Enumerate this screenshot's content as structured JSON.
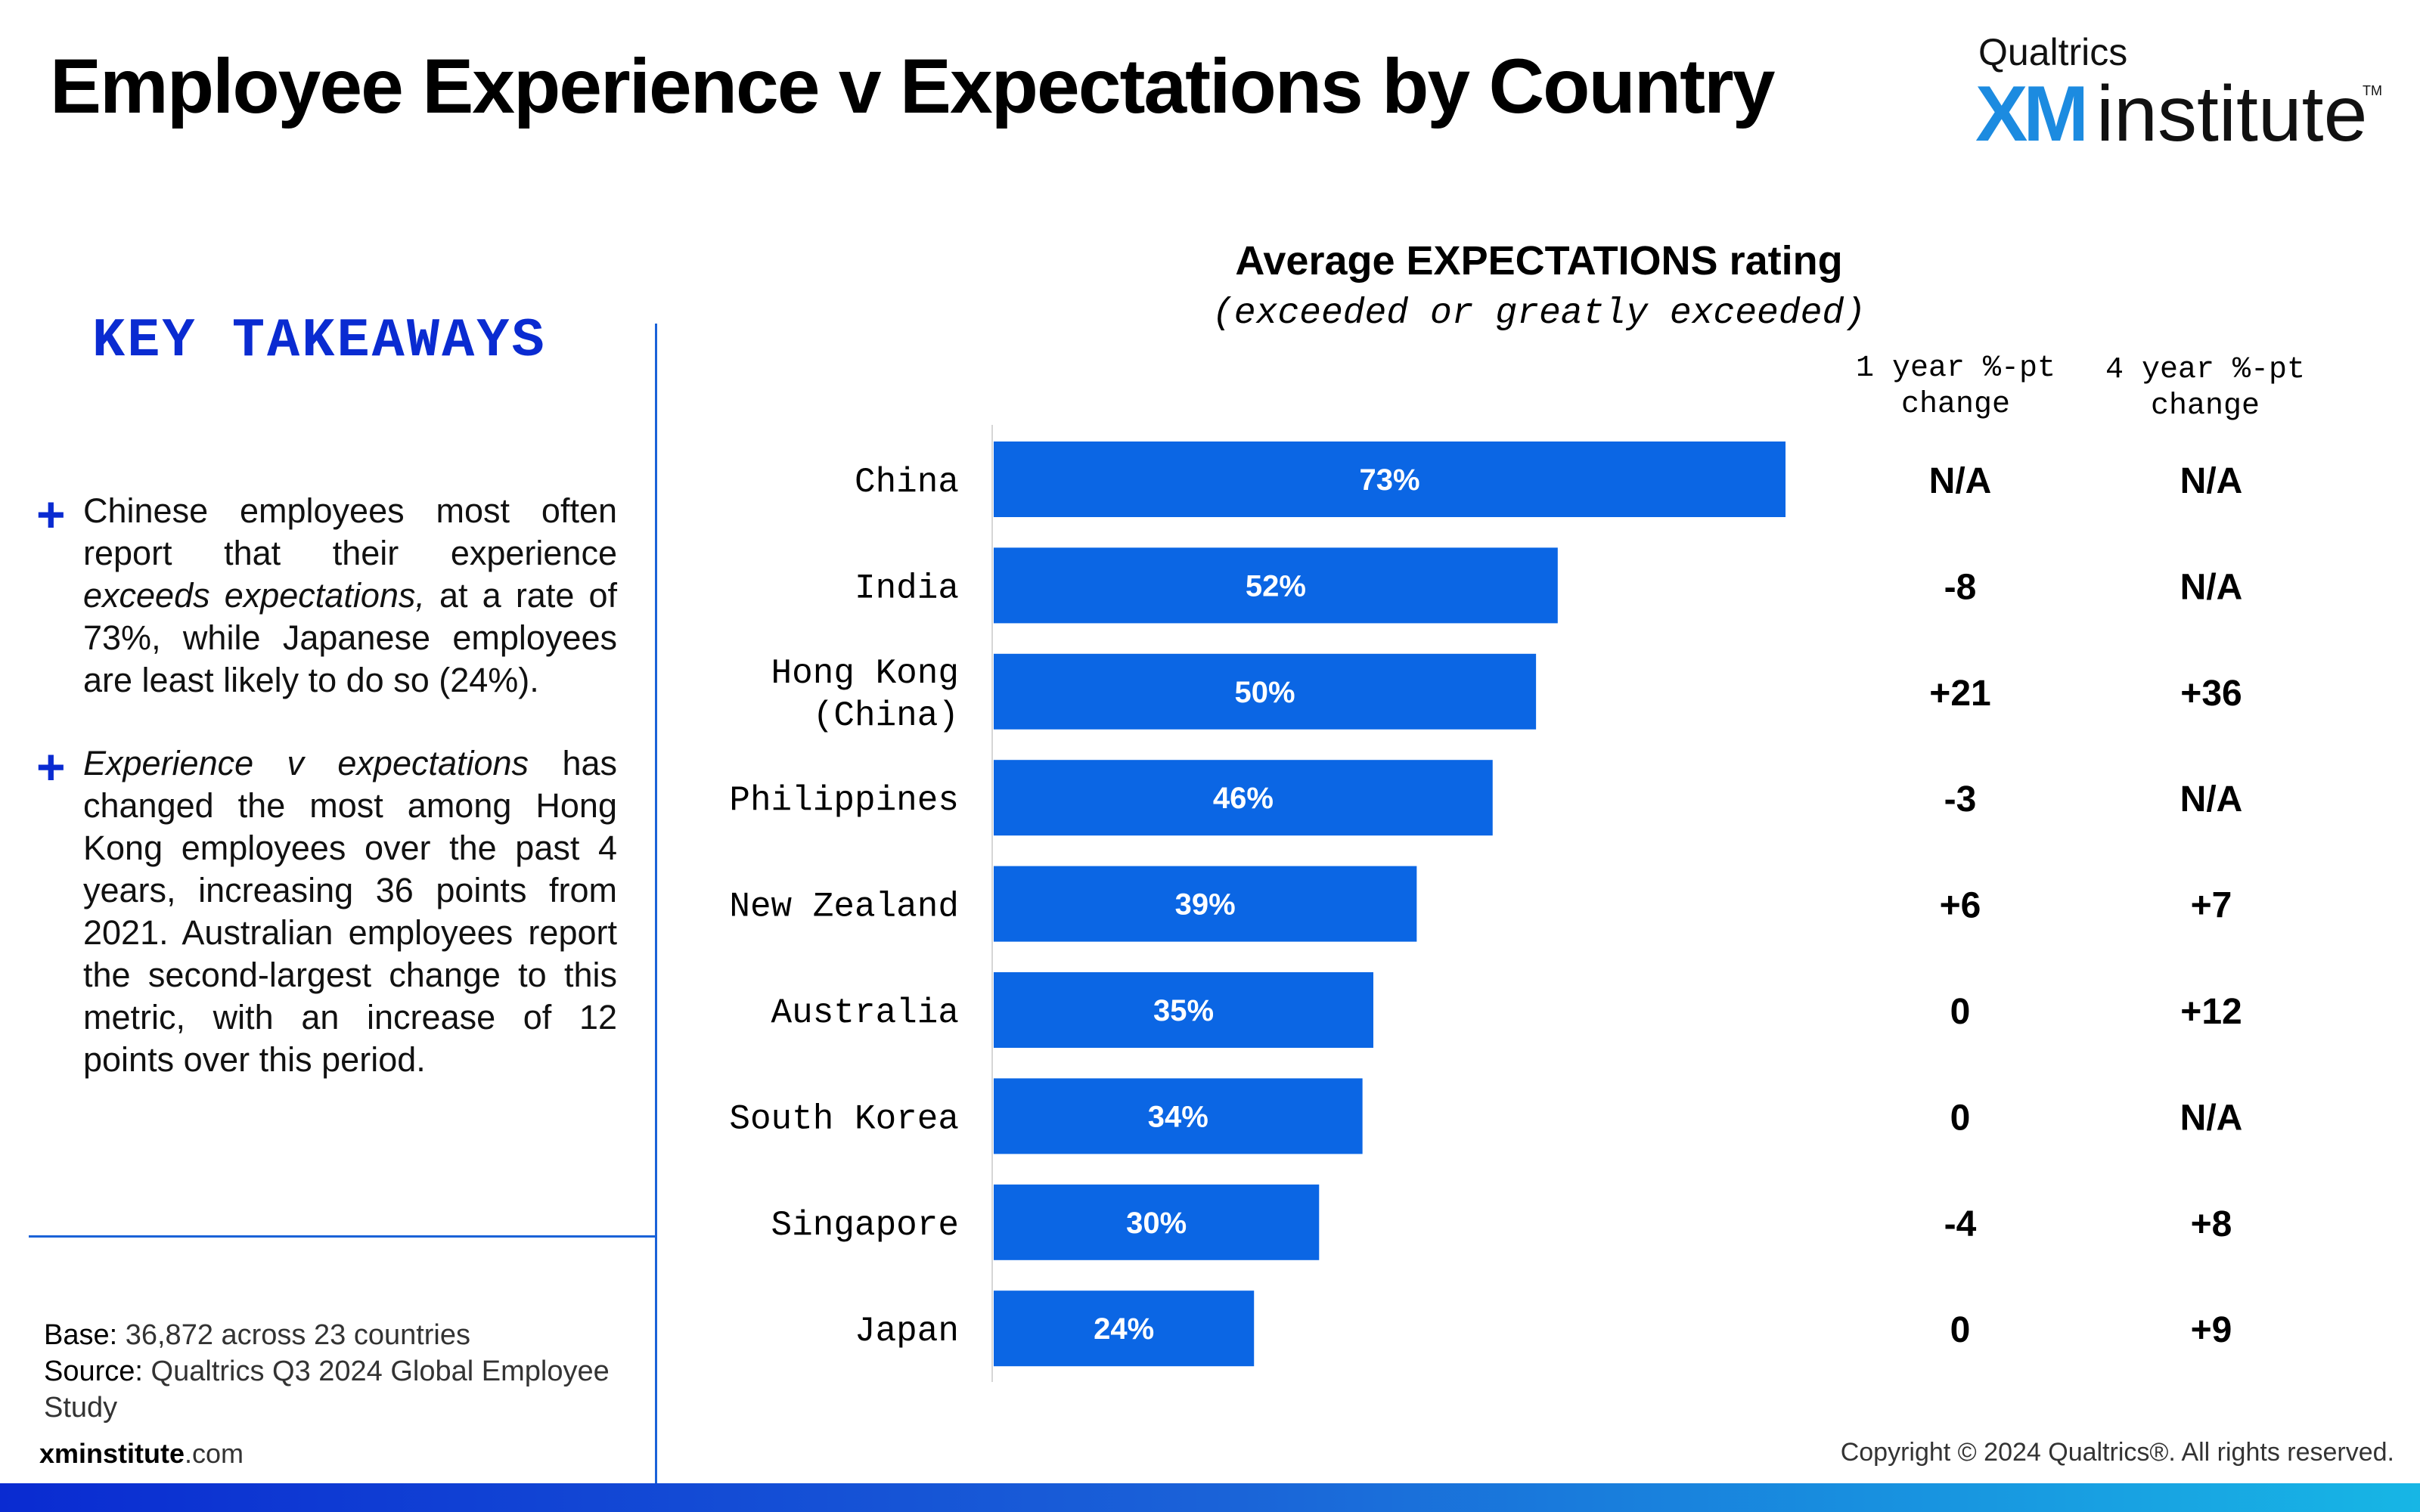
{
  "page": {
    "title": "Employee Experience v Expectations by Country",
    "logo": {
      "top": "Qualtrics",
      "xm": "XM",
      "institute": "institute",
      "tm": "TM"
    },
    "accent_color": "#0a2bd1",
    "bar_color": "#0b66e4"
  },
  "takeaways": {
    "heading": "KEY TAKEAWAYS",
    "bullet1": {
      "part1": "Chinese employees most often report that their experience ",
      "italic": "exceeds expectations,",
      "part2": " at a rate of 73%, while Japanese employees are least likely to do so (24%)."
    },
    "bullet2": {
      "italic": "Experience v expectations",
      "part2": " has changed the most among Hong Kong employees over the past 4 years, increasing 36 points from 2021. Australian employees report the second-largest change to this metric, with an increase of 12 points over this period."
    }
  },
  "footer": {
    "base_label": "Base:",
    "base_value": " 36,872 across 23 countries",
    "source_label": "Source:",
    "source_value": " Qualtrics Q3 2024 Global Employee Study",
    "site_bold": "xminstitute",
    "site_rest": ".com",
    "copyright": "Copyright © 2024 Qualtrics®. All rights reserved."
  },
  "chart_data": {
    "type": "bar",
    "orientation": "horizontal",
    "title": "Average EXPECTATIONS rating",
    "subtitle": "(exceeded or greatly exceeded)",
    "categories": [
      "China",
      "India",
      "Hong Kong (China)",
      "Philippines",
      "New Zealand",
      "Australia",
      "South Korea",
      "Singapore",
      "Japan"
    ],
    "category_lines": [
      [
        "China"
      ],
      [
        "India"
      ],
      [
        "Hong Kong",
        "(China)"
      ],
      [
        "Philippines"
      ],
      [
        "New Zealand"
      ],
      [
        "Australia"
      ],
      [
        "South Korea"
      ],
      [
        "Singapore"
      ],
      [
        "Japan"
      ]
    ],
    "values": [
      73,
      52,
      50,
      46,
      39,
      35,
      34,
      30,
      24
    ],
    "value_labels": [
      "73%",
      "52%",
      "50%",
      "46%",
      "39%",
      "35%",
      "34%",
      "30%",
      "24%"
    ],
    "xlim": [
      0,
      100
    ],
    "grid": false,
    "columns": [
      {
        "header": "1 year %-pt change",
        "values": [
          "N/A",
          "-8",
          "+21",
          "-3",
          "+6",
          "0",
          "0",
          "-4",
          "0"
        ]
      },
      {
        "header": "4 year %-pt change",
        "values": [
          "N/A",
          "N/A",
          "+36",
          "N/A",
          "+7",
          "+12",
          "N/A",
          "+8",
          "+9"
        ]
      }
    ]
  }
}
